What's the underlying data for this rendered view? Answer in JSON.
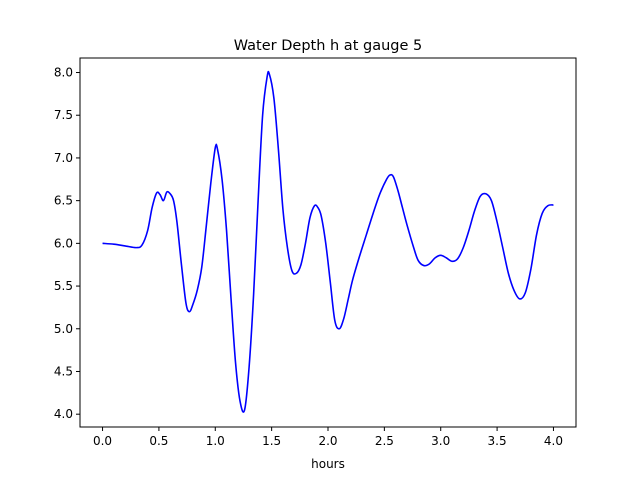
{
  "chart_data": {
    "type": "line",
    "title": "Water Depth h at gauge 5",
    "xlabel": "hours",
    "ylabel": "",
    "xlim": [
      -0.2,
      4.2
    ],
    "ylim": [
      3.85,
      8.17
    ],
    "xticks": [
      0.0,
      0.5,
      1.0,
      1.5,
      2.0,
      2.5,
      3.0,
      3.5,
      4.0
    ],
    "xtick_labels": [
      "0.0",
      "0.5",
      "1.0",
      "1.5",
      "2.0",
      "2.5",
      "3.0",
      "3.5",
      "4.0"
    ],
    "yticks": [
      4.0,
      4.5,
      5.0,
      5.5,
      6.0,
      6.5,
      7.0,
      7.5,
      8.0
    ],
    "ytick_labels": [
      "4.0",
      "4.5",
      "5.0",
      "5.5",
      "6.0",
      "6.5",
      "7.0",
      "7.5",
      "8.0"
    ],
    "grid": false,
    "legend": "none",
    "series": [
      {
        "color": "#0000ff",
        "x": [
          0.0,
          0.1,
          0.2,
          0.3,
          0.35,
          0.4,
          0.44,
          0.48,
          0.51,
          0.54,
          0.57,
          0.6,
          0.63,
          0.66,
          0.7,
          0.74,
          0.77,
          0.8,
          0.84,
          0.88,
          0.92,
          0.96,
          1.0,
          1.02,
          1.06,
          1.1,
          1.14,
          1.18,
          1.22,
          1.26,
          1.3,
          1.34,
          1.38,
          1.42,
          1.46,
          1.48,
          1.52,
          1.56,
          1.6,
          1.64,
          1.68,
          1.72,
          1.76,
          1.8,
          1.84,
          1.88,
          1.91,
          1.94,
          1.98,
          2.02,
          2.06,
          2.1,
          2.14,
          2.18,
          2.22,
          2.28,
          2.34,
          2.4,
          2.46,
          2.52,
          2.55,
          2.58,
          2.62,
          2.66,
          2.7,
          2.76,
          2.8,
          2.85,
          2.9,
          2.95,
          3.0,
          3.05,
          3.1,
          3.15,
          3.2,
          3.25,
          3.3,
          3.35,
          3.4,
          3.45,
          3.5,
          3.55,
          3.6,
          3.65,
          3.7,
          3.75,
          3.8,
          3.85,
          3.9,
          3.95,
          4.0
        ],
        "y": [
          6.0,
          5.99,
          5.97,
          5.95,
          5.98,
          6.15,
          6.42,
          6.59,
          6.57,
          6.5,
          6.6,
          6.58,
          6.5,
          6.25,
          5.75,
          5.3,
          5.2,
          5.28,
          5.45,
          5.72,
          6.2,
          6.7,
          7.12,
          7.1,
          6.75,
          6.15,
          5.35,
          4.6,
          4.15,
          4.05,
          4.55,
          5.4,
          6.5,
          7.5,
          7.95,
          7.98,
          7.7,
          7.1,
          6.4,
          5.95,
          5.68,
          5.65,
          5.75,
          6.0,
          6.3,
          6.44,
          6.42,
          6.32,
          6.0,
          5.55,
          5.1,
          5.0,
          5.12,
          5.35,
          5.58,
          5.85,
          6.1,
          6.35,
          6.58,
          6.75,
          6.8,
          6.78,
          6.62,
          6.42,
          6.22,
          5.95,
          5.8,
          5.74,
          5.76,
          5.83,
          5.86,
          5.83,
          5.79,
          5.82,
          5.95,
          6.15,
          6.38,
          6.55,
          6.58,
          6.5,
          6.25,
          5.95,
          5.65,
          5.45,
          5.35,
          5.42,
          5.7,
          6.1,
          6.35,
          6.44,
          6.45
        ]
      }
    ]
  }
}
